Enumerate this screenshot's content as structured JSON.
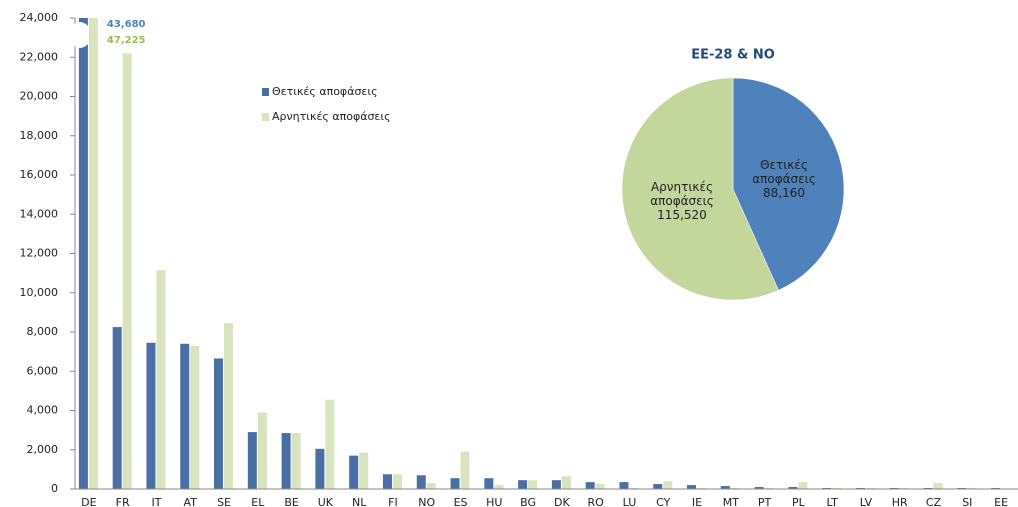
{
  "chart_data": [
    {
      "type": "bar",
      "categories": [
        "DE",
        "FR",
        "IT",
        "AT",
        "SE",
        "EL",
        "BE",
        "UK",
        "NL",
        "FI",
        "NO",
        "ES",
        "HU",
        "BG",
        "DK",
        "RO",
        "LU",
        "CY",
        "IE",
        "MT",
        "PT",
        "PL",
        "LT",
        "LV",
        "HR",
        "CZ",
        "SI",
        "EE"
      ],
      "series": [
        {
          "name": "Θετικές αποφάσεις",
          "color": "#4a6fa5",
          "values": [
            43680,
            8250,
            7450,
            7400,
            6650,
            2900,
            2850,
            2050,
            1700,
            750,
            700,
            550,
            550,
            450,
            450,
            350,
            350,
            250,
            200,
            150,
            100,
            100,
            50,
            50,
            50,
            50,
            50,
            50
          ],
          "value_labels": [
            "43,680",
            null,
            null,
            null,
            null,
            null,
            null,
            null,
            null,
            null,
            null,
            null,
            null,
            null,
            null,
            null,
            null,
            null,
            null,
            null,
            null,
            null,
            null,
            null,
            null,
            null,
            null,
            null
          ]
        },
        {
          "name": "Αρνητικές αποφάσεις",
          "color": "#d7e4bd",
          "values": [
            47225,
            22200,
            11150,
            7300,
            8450,
            3900,
            2850,
            4550,
            1850,
            750,
            300,
            1900,
            200,
            450,
            650,
            250,
            50,
            400,
            50,
            50,
            50,
            350,
            50,
            50,
            50,
            300,
            50,
            20
          ],
          "value_labels": [
            "47,225",
            null,
            null,
            null,
            null,
            null,
            null,
            null,
            null,
            null,
            null,
            null,
            null,
            null,
            null,
            null,
            null,
            null,
            null,
            null,
            null,
            null,
            null,
            null,
            null,
            null,
            null,
            null
          ]
        }
      ],
      "ylim": [
        0,
        24000
      ],
      "yticks": [
        0,
        {
          "value": 2000,
          "label": "2,000"
        },
        {
          "value": 4000,
          "label": "4,000"
        },
        {
          "value": 6000,
          "label": "6,000"
        },
        {
          "value": 8000,
          "label": "8,000"
        },
        {
          "value": 10000,
          "label": "10,000"
        },
        {
          "value": 12000,
          "label": "12,000"
        },
        {
          "value": 14000,
          "label": "14,000"
        },
        {
          "value": 16000,
          "label": "16,000"
        },
        {
          "value": 18000,
          "label": "18,000"
        },
        {
          "value": 20000,
          "label": "20,000"
        },
        {
          "value": 22000,
          "label": "22,000"
        },
        {
          "value": 24000,
          "label": "24,000"
        }
      ]
    },
    {
      "type": "pie",
      "title": "EE-28 & NO",
      "labels": [
        "Θετικές αποφάσεις",
        "Αρνητικές αποφάσεις"
      ],
      "values": [
        88160,
        115520
      ],
      "value_labels": [
        "88,160",
        "115,520"
      ],
      "colors": [
        "#4f81bd",
        "#c3d69b"
      ]
    }
  ]
}
